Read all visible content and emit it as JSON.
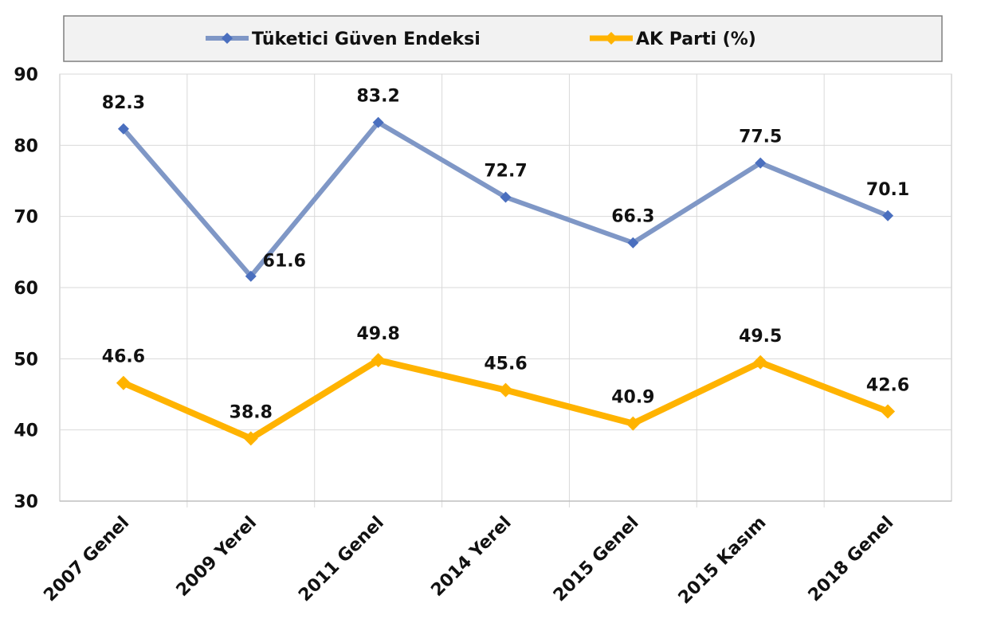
{
  "chart_data": {
    "type": "line",
    "categories": [
      "2007 Genel",
      "2009 Yerel",
      "2011 Genel",
      "2014 Yerel",
      "2015 Genel",
      "2015 Kasım",
      "2018 Genel"
    ],
    "series": [
      {
        "name": "Tüketici Güven Endeksi",
        "color": "#7f97c6",
        "marker_color": "#4a6fbf",
        "values": [
          82.3,
          61.6,
          83.2,
          72.7,
          66.3,
          77.5,
          70.1
        ],
        "labels": [
          "82.3",
          "61.6",
          "83.2",
          "72.7",
          "66.3",
          "77.5",
          "70.1"
        ]
      },
      {
        "name": "AK Parti (%)",
        "color": "#ffb300",
        "marker_color": "#ffb300",
        "values": [
          46.6,
          38.8,
          49.8,
          45.6,
          40.9,
          49.5,
          42.6
        ],
        "labels": [
          "46.6",
          "38.8",
          "49.8",
          "45.6",
          "40.9",
          "49.5",
          "42.6"
        ]
      }
    ],
    "ylim": [
      30,
      90
    ],
    "yticks": [
      "30",
      "40",
      "50",
      "60",
      "70",
      "80",
      "90"
    ],
    "grid": true,
    "legend_position": "top",
    "title": "",
    "xlabel": "",
    "ylabel": ""
  }
}
